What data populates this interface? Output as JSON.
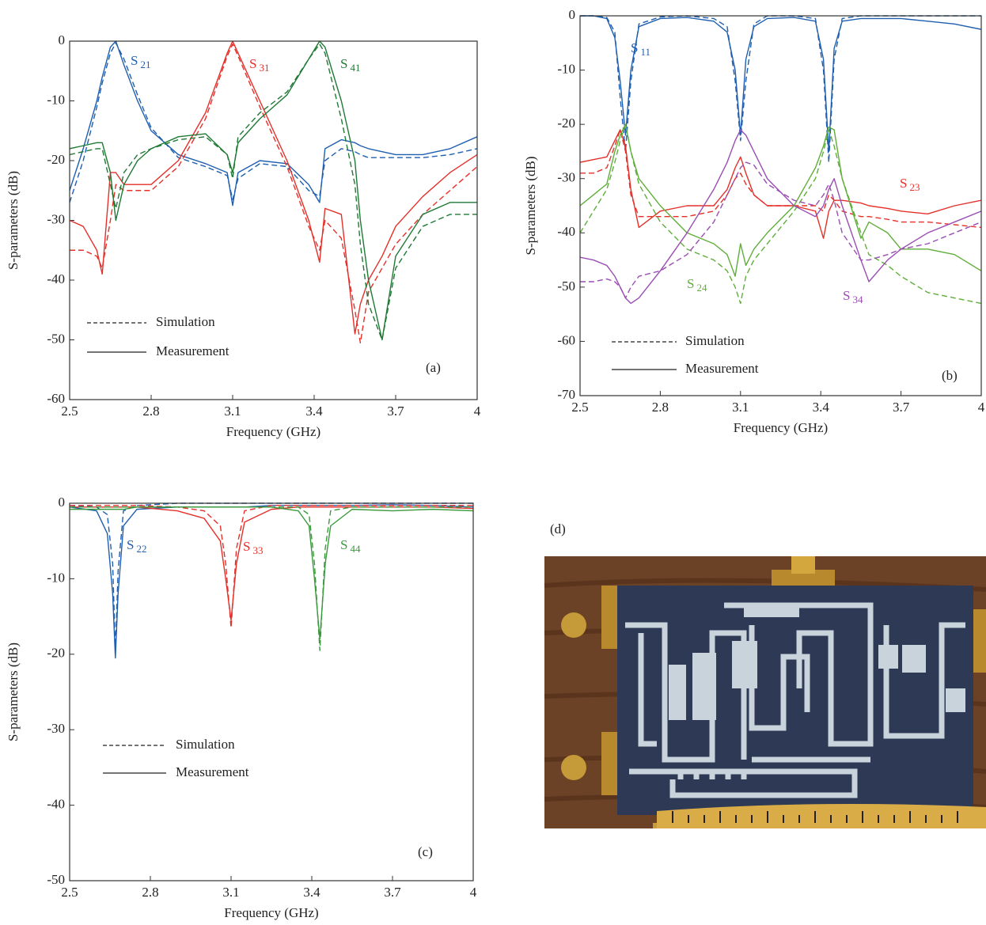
{
  "chart_data": [
    {
      "type": "line",
      "panel": "(a)",
      "x_label": "Frequency (GHz)",
      "y_label": "S-parameters (dB)",
      "xlim": [
        2.5,
        4
      ],
      "xticks": [
        2.5,
        2.8,
        3.1,
        3.4,
        3.7,
        4
      ],
      "ylim": [
        -60,
        0
      ],
      "yticks": [
        -60,
        -50,
        -40,
        -30,
        -20,
        -10,
        0
      ],
      "line_styles": [
        {
          "name": "Simulation",
          "dash": "dashed"
        },
        {
          "name": "Measurement",
          "dash": "solid"
        }
      ],
      "x": [
        2.5,
        2.55,
        2.6,
        2.62,
        2.65,
        2.67,
        2.7,
        2.75,
        2.8,
        2.9,
        3.0,
        3.08,
        3.1,
        3.12,
        3.2,
        3.3,
        3.38,
        3.42,
        3.44,
        3.5,
        3.55,
        3.57,
        3.6,
        3.65,
        3.7,
        3.8,
        3.9,
        4.0
      ],
      "series": [
        {
          "name": "S21",
          "color": "#1f5fb0",
          "simulation": [
            -27,
            -20,
            -11,
            -7,
            -2,
            -0.3,
            -3,
            -9,
            -14.5,
            -19.5,
            -21,
            -22.5,
            -26.5,
            -23,
            -20.5,
            -21,
            -25,
            -26,
            -20,
            -18,
            -18.5,
            -19,
            -19.5,
            -19.5,
            -19.5,
            -19.5,
            -19,
            -18
          ],
          "measurement": [
            -25,
            -18,
            -10,
            -6,
            -1,
            0,
            -4,
            -10,
            -15,
            -19,
            -20.5,
            -22,
            -27.5,
            -22,
            -20,
            -20.5,
            -24,
            -27,
            -18,
            -16.5,
            -17,
            -17.5,
            -18,
            -18.5,
            -19,
            -19,
            -18,
            -16
          ]
        },
        {
          "name": "S31",
          "color": "#e5302a",
          "simulation": [
            -35,
            -35,
            -36,
            -38,
            -30,
            -24,
            -25,
            -25,
            -25,
            -21,
            -13,
            -2.5,
            -0.5,
            -2.5,
            -11,
            -21,
            -31,
            -35,
            -30,
            -33,
            -45,
            -50.5,
            -42,
            -38,
            -34,
            -29,
            -25,
            -21
          ],
          "measurement": [
            -30,
            -31,
            -35,
            -39,
            -22,
            -22,
            -24,
            -24,
            -24,
            -20,
            -12,
            -2,
            0,
            -2,
            -10,
            -20,
            -30,
            -37,
            -28,
            -29,
            -49,
            -44,
            -40,
            -36,
            -31,
            -26,
            -22,
            -19
          ]
        },
        {
          "name": "S41",
          "color": "#1f7a35",
          "simulation": [
            -19,
            -18.5,
            -18,
            -18,
            -24,
            -28,
            -22,
            -19,
            -18,
            -16.5,
            -16,
            -19,
            -23,
            -16,
            -12,
            -8.5,
            -3,
            -0.5,
            -2,
            -13,
            -24,
            -34,
            -44,
            -50,
            -38,
            -31,
            -29,
            -29
          ],
          "measurement": [
            -18,
            -17.5,
            -17,
            -17,
            -22,
            -30,
            -24,
            -20,
            -18,
            -16,
            -15.5,
            -19,
            -22,
            -17,
            -13,
            -9,
            -3,
            0,
            -1,
            -10,
            -20,
            -30,
            -40,
            -50,
            -36,
            -29,
            -27,
            -27
          ]
        }
      ]
    },
    {
      "type": "line",
      "panel": "(b)",
      "x_label": "Frequency (GHz)",
      "y_label": "S-parameters (dB)",
      "xlim": [
        2.5,
        4
      ],
      "xticks": [
        2.5,
        2.8,
        3.1,
        3.4,
        3.7,
        4
      ],
      "ylim": [
        -70,
        0
      ],
      "yticks": [
        -70,
        -60,
        -50,
        -40,
        -30,
        -20,
        -10,
        0
      ],
      "line_styles": [
        {
          "name": "Simulation",
          "dash": "dashed"
        },
        {
          "name": "Measurement",
          "dash": "solid"
        }
      ],
      "x": [
        2.5,
        2.55,
        2.6,
        2.63,
        2.65,
        2.67,
        2.69,
        2.72,
        2.8,
        2.9,
        3.0,
        3.05,
        3.08,
        3.1,
        3.12,
        3.15,
        3.2,
        3.3,
        3.38,
        3.41,
        3.43,
        3.45,
        3.48,
        3.55,
        3.58,
        3.65,
        3.7,
        3.8,
        3.9,
        4.0
      ],
      "series": [
        {
          "name": "S11",
          "color": "#1f5fb0",
          "simulation": [
            0,
            0,
            -0.3,
            -3,
            -15,
            -25,
            -12,
            -1.5,
            -0.2,
            0,
            -0.5,
            -2,
            -12,
            -23,
            -12,
            -1.5,
            0,
            0,
            -0.5,
            -10,
            -27,
            -8,
            -0.5,
            0,
            0,
            0,
            0,
            0,
            0,
            0
          ],
          "measurement": [
            0,
            0,
            -0.5,
            -4,
            -12,
            -22,
            -10,
            -2,
            -0.5,
            -0.3,
            -1,
            -3,
            -10,
            -22,
            -8,
            -2,
            -0.5,
            -0.3,
            -1,
            -8,
            -25,
            -6,
            -1,
            -0.5,
            -0.5,
            -0.5,
            -0.5,
            -1,
            -1.5,
            -2.5
          ]
        },
        {
          "name": "S23",
          "color": "#e5302a",
          "simulation": [
            -29,
            -29,
            -28,
            -24,
            -21,
            -25,
            -33,
            -37,
            -37,
            -37,
            -36,
            -33,
            -30,
            -29,
            -31,
            -33,
            -35,
            -35,
            -35,
            -36,
            -33,
            -34,
            -36,
            -37,
            -37,
            -37.5,
            -38,
            -38,
            -38.5,
            -39
          ],
          "measurement": [
            -27,
            -26.5,
            -26,
            -23,
            -21,
            -24,
            -32,
            -39,
            -36,
            -35,
            -35,
            -32,
            -28,
            -26,
            -29,
            -33,
            -35,
            -35,
            -36,
            -41,
            -36,
            -34,
            -34,
            -34.5,
            -35,
            -35.5,
            -36,
            -36.5,
            -35,
            -34
          ]
        },
        {
          "name": "S24",
          "color": "#5fae3a",
          "simulation": [
            -40,
            -36,
            -32,
            -27,
            -23,
            -20,
            -25,
            -31,
            -38,
            -43,
            -45,
            -47,
            -50,
            -53,
            -48,
            -45,
            -42,
            -36,
            -30,
            -25,
            -21,
            -24,
            -30,
            -40,
            -44,
            -46,
            -48,
            -51,
            -52,
            -53
          ],
          "measurement": [
            -35,
            -33,
            -31,
            -25,
            -22,
            -20,
            -25,
            -30,
            -35,
            -40,
            -42,
            -44,
            -48,
            -42,
            -46,
            -43,
            -40,
            -35,
            -28,
            -24,
            -20.5,
            -21,
            -30,
            -41,
            -38,
            -40,
            -43,
            -43,
            -44,
            -47
          ]
        },
        {
          "name": "S34",
          "color": "#9a4db3",
          "simulation": [
            -49,
            -49,
            -48.5,
            -49,
            -50,
            -52,
            -50,
            -48,
            -47,
            -44,
            -38,
            -33,
            -30,
            -28,
            -27,
            -27.5,
            -31,
            -34,
            -35,
            -33,
            -31,
            -34,
            -40,
            -45,
            -45,
            -44,
            -43,
            -42,
            -40,
            -38
          ],
          "measurement": [
            -44.5,
            -45,
            -46,
            -48,
            -50,
            -52,
            -53,
            -52,
            -47,
            -40,
            -32,
            -27,
            -23,
            -21,
            -22,
            -25,
            -30,
            -35,
            -37,
            -35,
            -32,
            -30,
            -35,
            -45,
            -49,
            -45,
            -43,
            -40,
            -38,
            -36
          ]
        }
      ]
    },
    {
      "type": "line",
      "panel": "(c)",
      "x_label": "Frequency (GHz)",
      "y_label": "S-parameters (dB)",
      "xlim": [
        2.5,
        4
      ],
      "xticks": [
        2.5,
        2.8,
        3.1,
        3.4,
        3.7,
        4
      ],
      "ylim": [
        -50,
        0
      ],
      "yticks": [
        -50,
        -40,
        -30,
        -20,
        -10,
        0
      ],
      "line_styles": [
        {
          "name": "Simulation",
          "dash": "dashed"
        },
        {
          "name": "Measurement",
          "dash": "solid"
        }
      ],
      "x": [
        2.5,
        2.6,
        2.64,
        2.66,
        2.67,
        2.68,
        2.7,
        2.75,
        2.9,
        3.0,
        3.06,
        3.08,
        3.1,
        3.12,
        3.15,
        3.25,
        3.35,
        3.39,
        3.41,
        3.43,
        3.45,
        3.47,
        3.55,
        3.7,
        3.85,
        4.0
      ],
      "series": [
        {
          "name": "S22",
          "color": "#1f5fb0",
          "simulation": [
            -0.3,
            -0.5,
            -1.5,
            -8,
            -19.5,
            -9,
            -1,
            -0.3,
            0,
            0,
            0,
            0,
            0,
            0,
            0,
            0,
            0,
            0,
            0,
            0,
            0,
            0,
            0,
            0,
            0,
            0
          ],
          "measurement": [
            -0.5,
            -1,
            -4,
            -12,
            -20.5,
            -12,
            -3,
            -0.8,
            -0.5,
            -0.5,
            -0.5,
            -0.5,
            -0.5,
            -0.5,
            -0.5,
            -0.3,
            -0.3,
            -0.3,
            -0.3,
            -0.3,
            -0.3,
            -0.3,
            -0.3,
            -0.2,
            -0.3,
            -0.5
          ]
        },
        {
          "name": "S33",
          "color": "#e5302a",
          "simulation": [
            -0.3,
            -0.3,
            -0.3,
            -0.3,
            -0.3,
            -0.3,
            -0.3,
            -0.3,
            -0.5,
            -1,
            -3,
            -8,
            -16.5,
            -6,
            -1,
            -0.3,
            -0.3,
            -0.3,
            -0.3,
            -0.3,
            -0.3,
            -0.3,
            -0.3,
            -0.3,
            -0.3,
            -0.3
          ],
          "measurement": [
            -0.5,
            -0.5,
            -0.5,
            -0.5,
            -0.5,
            -0.5,
            -0.5,
            -0.5,
            -1,
            -2,
            -5,
            -10,
            -15.5,
            -8,
            -2.5,
            -0.8,
            -0.5,
            -0.5,
            -0.5,
            -0.5,
            -0.5,
            -0.5,
            -0.5,
            -0.5,
            -0.5,
            -0.7
          ]
        },
        {
          "name": "S44",
          "color": "#3a9a3c",
          "simulation": [
            -0.5,
            -0.5,
            -0.5,
            -0.5,
            -0.5,
            -0.5,
            -0.5,
            -0.5,
            -0.5,
            -0.5,
            -0.5,
            -0.5,
            -0.5,
            -0.5,
            -0.5,
            -0.5,
            -0.5,
            -1.5,
            -8,
            -19.5,
            -6,
            -1,
            -0.5,
            -0.5,
            -0.5,
            -0.5
          ],
          "measurement": [
            -0.8,
            -0.8,
            -0.8,
            -0.8,
            -0.8,
            -0.8,
            -0.8,
            -0.5,
            -0.5,
            -0.5,
            -0.5,
            -0.5,
            -0.5,
            -0.5,
            -0.5,
            -0.5,
            -1,
            -3,
            -10,
            -18,
            -8,
            -3,
            -0.8,
            -1,
            -0.8,
            -1
          ]
        }
      ]
    }
  ],
  "photo": {
    "label": "(d)"
  }
}
